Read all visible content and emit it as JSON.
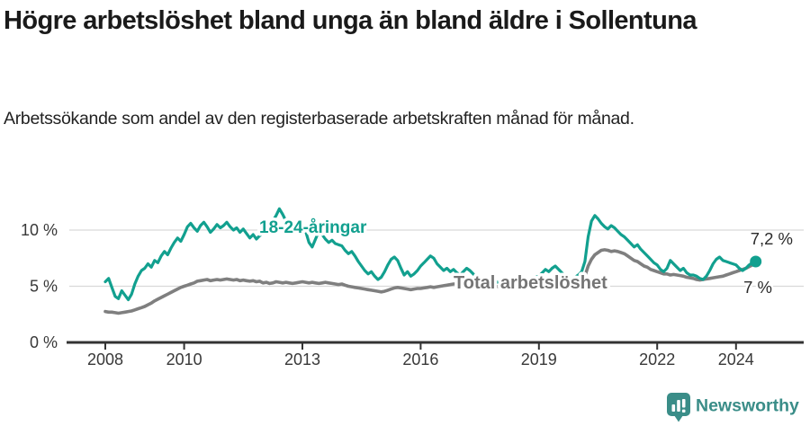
{
  "header": {
    "title": "Högre arbetslöshet bland unga än bland äldre i Sollentuna",
    "subtitle": "Arbetssökande som andel av den registerbaserade arbetskraften månad för månad."
  },
  "footer": {
    "brand": "Newsworthy",
    "brand_color": "#3a8d88",
    "logo_icon": "bar-chart-speech-bubble-icon"
  },
  "chart_data": {
    "type": "line",
    "title": "Högre arbetslöshet bland unga än bland äldre i Sollentuna",
    "subtitle": "Arbetssökande som andel av den registerbaserade arbetskraften månad för månad.",
    "x_unit": "month",
    "x_start": "2008-01",
    "x_end": "2024-07",
    "x_ticks": [
      2008,
      2010,
      2013,
      2016,
      2019,
      2022,
      2024
    ],
    "y_ticks": [
      {
        "value": 0,
        "label": "0 %"
      },
      {
        "value": 5,
        "label": "5 %"
      },
      {
        "value": 10,
        "label": "10 %"
      }
    ],
    "ylim": [
      0,
      13.2
    ],
    "grid": "horizontal",
    "legend_position": "inline-labels",
    "axis_color": "#333333",
    "gridline_color": "#d9d9d9",
    "tick_label_color": "#383838",
    "value_label_color": "#2b2b2b",
    "series": [
      {
        "name": "18-24-åringar",
        "color": "#12a08f",
        "end_label": "7,2 %",
        "end_marker": true,
        "values": [
          5.4,
          5.7,
          4.9,
          4.1,
          3.9,
          4.6,
          4.2,
          3.8,
          4.3,
          5.2,
          5.9,
          6.4,
          6.6,
          7.0,
          6.7,
          7.3,
          7.1,
          7.7,
          8.1,
          7.8,
          8.4,
          8.9,
          9.3,
          9.0,
          9.6,
          10.3,
          10.6,
          10.2,
          9.9,
          10.4,
          10.7,
          10.3,
          9.8,
          10.1,
          10.5,
          10.2,
          10.4,
          10.7,
          10.3,
          10.0,
          10.2,
          9.8,
          10.1,
          9.7,
          9.3,
          9.6,
          9.2,
          9.5,
          9.7,
          10.0,
          10.4,
          10.8,
          11.3,
          11.9,
          11.4,
          10.8,
          10.4,
          10.7,
          10.2,
          10.5,
          10.4,
          9.9,
          8.9,
          8.5,
          9.2,
          9.9,
          9.6,
          9.2,
          8.9,
          9.1,
          8.8,
          8.7,
          8.6,
          8.2,
          7.9,
          8.1,
          7.7,
          7.2,
          6.8,
          6.4,
          6.1,
          6.3,
          5.9,
          5.6,
          5.8,
          6.3,
          6.9,
          7.4,
          7.6,
          7.3,
          6.6,
          6.0,
          6.3,
          5.9,
          6.1,
          6.4,
          6.8,
          7.1,
          7.4,
          7.7,
          7.5,
          7.0,
          6.7,
          6.4,
          6.6,
          6.3,
          6.5,
          6.2,
          6.0,
          6.3,
          6.6,
          6.4,
          6.1,
          5.8,
          5.6,
          5.4,
          5.5,
          5.3,
          5.2,
          5.4,
          5.3,
          5.1,
          5.2,
          5.0,
          5.1,
          5.3,
          5.2,
          5.4,
          5.3,
          5.5,
          5.6,
          5.8,
          5.9,
          6.2,
          6.5,
          6.3,
          6.6,
          6.8,
          6.5,
          6.2,
          5.9,
          5.7,
          5.6,
          5.8,
          6.0,
          6.3,
          7.2,
          9.4,
          10.8,
          11.3,
          11.0,
          10.6,
          10.3,
          10.1,
          10.4,
          10.2,
          9.9,
          9.6,
          9.4,
          9.1,
          8.8,
          8.5,
          8.7,
          8.3,
          8.0,
          7.7,
          7.4,
          7.1,
          6.9,
          6.5,
          6.3,
          6.6,
          7.3,
          7.0,
          6.7,
          6.4,
          6.6,
          6.2,
          6.0,
          6.0,
          5.9,
          5.7,
          5.6,
          5.9,
          6.4,
          7.0,
          7.4,
          7.6,
          7.3,
          7.2,
          7.1,
          7.0,
          6.9,
          6.6,
          6.4,
          6.6,
          6.9,
          7.1,
          7.2
        ]
      },
      {
        "name": "Total arbetslöshet",
        "color": "#7f7f7f",
        "end_label": "7 %",
        "end_marker": false,
        "values": [
          2.75,
          2.7,
          2.7,
          2.65,
          2.6,
          2.65,
          2.7,
          2.75,
          2.8,
          2.9,
          3.0,
          3.1,
          3.2,
          3.35,
          3.5,
          3.7,
          3.85,
          4.0,
          4.15,
          4.3,
          4.45,
          4.6,
          4.75,
          4.9,
          5.0,
          5.1,
          5.2,
          5.3,
          5.45,
          5.5,
          5.55,
          5.6,
          5.5,
          5.55,
          5.6,
          5.55,
          5.6,
          5.65,
          5.6,
          5.55,
          5.6,
          5.5,
          5.55,
          5.5,
          5.45,
          5.5,
          5.4,
          5.45,
          5.3,
          5.35,
          5.25,
          5.3,
          5.4,
          5.35,
          5.3,
          5.35,
          5.3,
          5.25,
          5.3,
          5.35,
          5.4,
          5.35,
          5.3,
          5.35,
          5.3,
          5.25,
          5.3,
          5.35,
          5.3,
          5.25,
          5.2,
          5.15,
          5.2,
          5.1,
          5.0,
          4.95,
          4.9,
          4.85,
          4.8,
          4.75,
          4.7,
          4.65,
          4.6,
          4.55,
          4.5,
          4.55,
          4.65,
          4.75,
          4.85,
          4.9,
          4.85,
          4.8,
          4.75,
          4.7,
          4.75,
          4.8,
          4.8,
          4.85,
          4.9,
          4.95,
          4.9,
          4.95,
          5.0,
          5.05,
          5.1,
          5.15,
          5.2,
          5.2,
          5.25,
          5.3,
          5.25,
          5.2,
          5.15,
          5.1,
          5.05,
          5.0,
          4.95,
          4.9,
          4.95,
          5.0,
          4.95,
          4.9,
          4.85,
          4.8,
          4.85,
          4.9,
          4.85,
          4.8,
          4.85,
          4.9,
          4.95,
          5.0,
          5.0,
          5.05,
          5.1,
          5.05,
          5.1,
          5.15,
          5.1,
          5.05,
          5.0,
          5.05,
          5.1,
          5.2,
          5.3,
          5.4,
          5.9,
          6.8,
          7.4,
          7.8,
          8.0,
          8.2,
          8.25,
          8.2,
          8.1,
          8.15,
          8.1,
          8.0,
          7.9,
          7.7,
          7.5,
          7.3,
          7.2,
          7.0,
          6.8,
          6.7,
          6.5,
          6.4,
          6.3,
          6.2,
          6.1,
          6.1,
          6.0,
          6.05,
          6.0,
          5.95,
          5.9,
          5.8,
          5.75,
          5.7,
          5.6,
          5.55,
          5.6,
          5.65,
          5.7,
          5.75,
          5.8,
          5.85,
          5.9,
          6.0,
          6.1,
          6.2,
          6.3,
          6.4,
          6.5,
          6.6,
          6.75,
          6.9,
          7.0
        ]
      }
    ]
  }
}
